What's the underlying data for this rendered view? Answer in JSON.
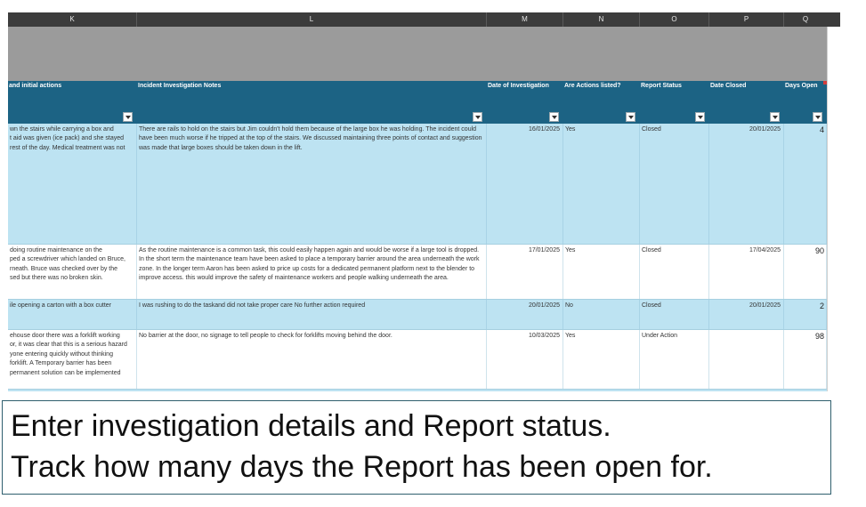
{
  "columns": {
    "letters": [
      "K",
      "L",
      "M",
      "N",
      "O",
      "P",
      "Q"
    ]
  },
  "headers": {
    "k": "and initial actions",
    "l": "Incident  Investigation Notes",
    "m": "Date of Investigation",
    "n": "Are Actions listed?",
    "o": "Report Status",
    "p": "Date Closed",
    "q": "Days Open"
  },
  "rows": [
    {
      "k": "wn the stairs while carrying a box and\nt aid was given (ice pack) and she stayed\nrest of the day.  Medical treatment was not",
      "l": "There are rails to hold on the stairs but Jim couldn't hold them because of the large box he was holding.  The incident could have been much worse if he tripped at the top of the stairs.  We discussed maintaining three points of contact and suggestion was made that large boxes should be taken down in the lift.",
      "m": "16/01/2025",
      "n": "Yes",
      "o": "Closed",
      "p": "20/01/2025",
      "q": "4"
    },
    {
      "k": " doing routine maintenance on the\nped a screwdriver which landed on Bruce,\nrneath.  Bruce was checked over by the\nsed but there was no broken skin.",
      "l": "As the routine maintenance is a common task, this could easily happen again and would be worse if  a large tool is dropped.  In the short term the maintenance team have been asked to place a temporary  barrier around the area underneath the work zone.  In the longer term Aaron has been asked to price up costs for a dedicated permanent platform next to the blender to improve access.  this would  improve the safety of maintenance workers and people walking underneath the area.",
      "m": "17/01/2025",
      "n": "Yes",
      "o": "Closed",
      "p": "17/04/2025",
      "q": "90"
    },
    {
      "k": "ile opening a carton with a box cutter",
      "l": "I was rushing to do the taskand did not take proper care No further action required",
      "m": "20/01/2025",
      "n": "No",
      "o": "Closed",
      "p": "20/01/2025",
      "q": "2"
    },
    {
      "k": "ehouse door there was a forklift working\nor, it was clear that this is a serious hazard\nyone entering quickly without thinking\n forklift.  A Temporary barrier has been\npermanent solution can be implemented",
      "l": "No barrier at the door, no signage to tell people to check for forklifts moving behind the door.",
      "m": "10/03/2025",
      "n": "Yes",
      "o": "Under Action",
      "p": "",
      "q": "98"
    }
  ],
  "caption": {
    "line1": "Enter investigation details and Report status.",
    "line2": "Track how many days the Report has been open for."
  },
  "colors": {
    "header_bg": "#1c6384",
    "band_bg": "#9b9b9b",
    "row_blue": "#bde3f2",
    "letters_bg": "#3c3c3c"
  },
  "icons": {
    "filter": "filter-dropdown-icon"
  }
}
